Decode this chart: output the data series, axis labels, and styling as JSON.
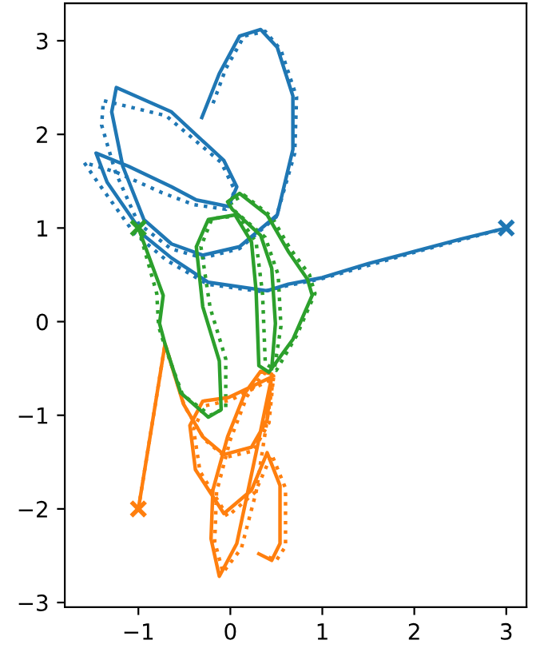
{
  "chart_data": {
    "type": "line",
    "xlim": [
      -1.8,
      3.22
    ],
    "ylim": [
      -3.05,
      3.4
    ],
    "xticks": [
      {
        "value": -1,
        "label": "−1"
      },
      0,
      1,
      2,
      3
    ],
    "yticks": [
      {
        "value": -3,
        "label": "−3"
      },
      {
        "value": -2,
        "label": "−2"
      },
      {
        "value": -1,
        "label": "−1"
      },
      0,
      1,
      2,
      3
    ],
    "grid": false,
    "legend": false,
    "series": [
      {
        "line_style": "dotted",
        "color": "#1f77b4",
        "x": [
          3,
          2.5,
          2,
          1.5,
          1,
          0.6,
          0.35,
          -0.25,
          -0.7,
          -1.05,
          -1.45,
          -1.59,
          -1.25,
          -0.75,
          -0.4,
          -0.05,
          0.05,
          -0.1,
          -0.7,
          -1.38,
          -1.4,
          -1.25,
          -1.0,
          -0.65,
          -0.3,
          0.1,
          0.5,
          0.7,
          0.72,
          0.55,
          0.38,
          0.15,
          -0.05,
          -0.2
        ],
        "values": [
          1,
          0.87,
          0.74,
          0.6,
          0.46,
          0.38,
          0.32,
          0.4,
          0.66,
          0.95,
          1.5,
          1.7,
          1.6,
          1.38,
          1.25,
          1.2,
          1.4,
          1.7,
          2.2,
          2.36,
          2.1,
          1.6,
          1.05,
          0.78,
          0.68,
          0.78,
          1.12,
          1.8,
          2.4,
          2.9,
          3.1,
          3.05,
          2.7,
          2.3
        ]
      },
      {
        "line_style": "dotted",
        "color": "#ff7f0e",
        "x": [
          -1,
          -0.71,
          -0.5,
          -0.28,
          -0.05,
          0.25,
          0.42,
          0.47,
          0.36,
          0.18,
          0.0,
          -0.15,
          -0.17,
          -0.08,
          0.12,
          0.28,
          0.47,
          0.48,
          0.0,
          -0.28,
          -0.4,
          -0.33,
          -0.03,
          0.27,
          0.45,
          0.6,
          0.6,
          0.5,
          0.38
        ],
        "values": [
          -2,
          -0.24,
          -0.9,
          -1.26,
          -1.45,
          -1.38,
          -1.08,
          -0.58,
          -0.55,
          -0.8,
          -1.26,
          -1.82,
          -2.35,
          -2.68,
          -2.42,
          -1.82,
          -0.6,
          -0.6,
          -0.84,
          -0.9,
          -1.15,
          -1.6,
          -2.08,
          -1.82,
          -1.42,
          -1.78,
          -2.4,
          -2.55,
          -2.5
        ]
      },
      {
        "line_style": "dotted",
        "color": "#2ca02c",
        "x": [
          -1,
          -0.8,
          -0.78,
          -0.7,
          -0.52,
          -0.22,
          -0.05,
          -0.05,
          -0.22,
          -0.32,
          -0.2,
          0.08,
          0.28,
          0.35,
          0.38,
          0.5,
          0.72,
          0.92,
          0.86,
          0.65,
          0.45,
          0.15,
          0.0,
          0.05,
          0.38,
          0.52,
          0.55,
          0.48
        ],
        "values": [
          1,
          0.3,
          -0.05,
          -0.3,
          -0.78,
          -1.0,
          -0.92,
          -0.4,
          0.15,
          0.8,
          1.1,
          1.13,
          0.85,
          0.3,
          -0.45,
          -0.52,
          -0.15,
          0.3,
          0.5,
          0.78,
          1.12,
          1.35,
          1.28,
          1.18,
          0.9,
          0.5,
          -0.05,
          -0.5
        ]
      },
      {
        "line_style": "solid",
        "color": "#1f77b4",
        "x": [
          3,
          2.5,
          2,
          1.5,
          1,
          0.63,
          0.4,
          -0.24,
          -0.64,
          -0.94,
          -1.34,
          -1.46,
          -1.11,
          -0.64,
          -0.37,
          -0.02,
          0.07,
          -0.07,
          -0.64,
          -1.24,
          -1.29,
          -1.17,
          -0.94,
          -0.64,
          -0.3,
          0.1,
          0.51,
          0.68,
          0.68,
          0.51,
          0.33,
          0.1,
          -0.12,
          -0.31
        ],
        "values": [
          1,
          0.88,
          0.75,
          0.62,
          0.47,
          0.4,
          0.33,
          0.42,
          0.68,
          0.92,
          1.49,
          1.8,
          1.66,
          1.44,
          1.3,
          1.23,
          1.44,
          1.72,
          2.24,
          2.5,
          2.24,
          1.66,
          1.09,
          0.83,
          0.71,
          0.8,
          1.14,
          1.84,
          2.41,
          2.93,
          3.12,
          3.05,
          2.65,
          2.18
        ]
      },
      {
        "line_style": "solid",
        "color": "#ff7f0e",
        "x": [
          -1,
          -0.71,
          -0.51,
          -0.3,
          -0.07,
          0.23,
          0.4,
          0.45,
          0.33,
          0.16,
          -0.03,
          -0.19,
          -0.21,
          -0.12,
          0.07,
          0.28,
          0.45,
          -0.02,
          -0.3,
          -0.44,
          -0.38,
          -0.07,
          0.23,
          0.4,
          0.54,
          0.54,
          0.45,
          0.31
        ],
        "values": [
          -2,
          -0.24,
          -0.88,
          -1.23,
          -1.42,
          -1.34,
          -1.05,
          -0.56,
          -0.53,
          -0.76,
          -1.23,
          -1.8,
          -2.32,
          -2.72,
          -2.37,
          -1.4,
          -0.59,
          -0.81,
          -0.85,
          -1.11,
          -1.58,
          -2.05,
          -1.8,
          -1.4,
          -1.75,
          -2.37,
          -2.55,
          -2.48
        ]
      },
      {
        "line_style": "solid",
        "color": "#2ca02c",
        "x": [
          -1,
          -0.73,
          -0.77,
          -0.71,
          -0.54,
          -0.24,
          -0.1,
          -0.12,
          -0.3,
          -0.37,
          -0.24,
          0.05,
          0.23,
          0.28,
          0.31,
          0.42,
          0.68,
          0.89,
          0.84,
          0.63,
          0.4,
          0.1,
          -0.03,
          0.02,
          0.33,
          0.45,
          0.49,
          0.45
        ],
        "values": [
          1,
          0.28,
          -0.02,
          -0.24,
          -0.76,
          -1.02,
          -0.94,
          -0.42,
          0.16,
          0.8,
          1.09,
          1.14,
          0.85,
          0.33,
          -0.47,
          -0.54,
          -0.19,
          0.28,
          0.45,
          0.75,
          1.14,
          1.37,
          1.28,
          1.2,
          0.92,
          0.57,
          -0.02,
          -0.5
        ]
      },
      {
        "type": "scatter",
        "marker": "cross",
        "color": "#1f77b4",
        "x": [
          3
        ],
        "values": [
          1
        ]
      },
      {
        "type": "scatter",
        "marker": "cross",
        "color": "#ff7f0e",
        "x": [
          -1
        ],
        "values": [
          -2
        ]
      },
      {
        "type": "scatter",
        "marker": "cross",
        "color": "#2ca02c",
        "x": [
          -1
        ],
        "values": [
          1
        ]
      }
    ]
  }
}
